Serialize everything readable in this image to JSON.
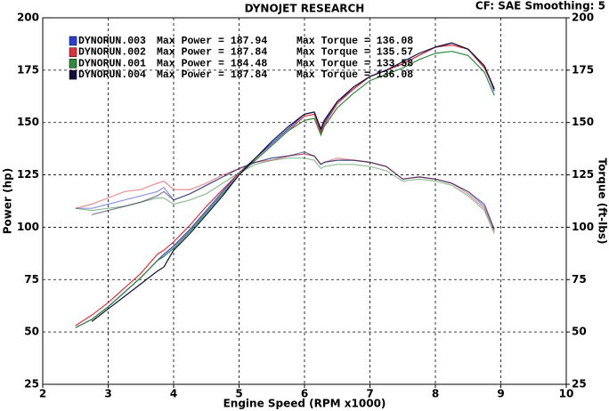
{
  "chart_data": {
    "type": "line",
    "title": "DYNOJET RESEARCH",
    "subtitle": "CF: SAE  Smoothing: 5",
    "x_label": "Engine Speed (RPM x1000)",
    "y_label": "Power (hp)",
    "y2_label": "Torque (ft-lbs)",
    "xlim": [
      2,
      10
    ],
    "xticks": [
      2,
      3,
      4,
      5,
      6,
      7,
      8,
      9,
      10
    ],
    "ylim": [
      25,
      200
    ],
    "yticks": [
      25,
      50,
      75,
      100,
      125,
      150,
      175,
      200
    ],
    "y2lim": [
      25,
      200
    ],
    "y2ticks": [
      25,
      50,
      75,
      100,
      125,
      150,
      175,
      200
    ],
    "grid": true,
    "x": [
      2.5,
      2.75,
      3,
      3.25,
      3.5,
      3.75,
      3.85,
      4,
      4.25,
      4.5,
      4.75,
      5,
      5.25,
      5.5,
      5.75,
      6,
      6.15,
      6.25,
      6.3,
      6.5,
      6.75,
      7,
      7.25,
      7.5,
      7.75,
      8,
      8.25,
      8.5,
      8.75,
      8.9
    ],
    "runs": [
      {
        "name": "DYNORUN.003",
        "max_power_label": "Max Power = 187.94",
        "max_torque_label": "Max Torque = 136.08",
        "color": "#2b3fd6",
        "power": [
          52,
          56,
          62,
          69,
          76,
          84,
          87,
          91,
          99,
          108,
          117,
          126,
          133,
          140,
          147,
          154,
          155,
          146,
          150,
          160,
          166,
          172,
          175,
          178,
          182,
          186,
          188,
          185,
          177,
          165
        ],
        "torque": [
          109,
          109,
          111,
          113,
          115,
          117,
          119,
          113,
          116,
          120,
          124,
          128,
          131,
          133,
          134,
          135,
          134,
          130,
          131,
          132,
          132,
          131,
          129,
          123,
          124,
          123,
          121,
          117,
          110,
          99
        ]
      },
      {
        "name": "DYNORUN.002",
        "max_power_label": "Max Power = 187.84",
        "max_torque_label": "Max Torque = 135.57",
        "color": "#e0303a",
        "power": [
          53,
          58,
          64,
          71,
          78,
          87,
          89,
          93,
          101,
          110,
          118,
          126,
          132,
          139,
          146,
          153,
          154,
          145,
          149,
          159,
          166,
          172,
          175,
          178,
          182,
          186,
          187,
          185,
          176,
          166
        ],
        "torque": [
          109,
          111,
          114,
          117,
          118,
          121,
          122,
          118,
          118,
          121,
          125,
          128,
          131,
          132,
          134,
          135,
          134,
          130,
          131,
          133,
          132,
          131,
          129,
          123,
          124,
          123,
          121,
          116,
          109,
          98
        ]
      },
      {
        "name": "DYNORUN.001",
        "max_power_label": "Max Power = 184.48",
        "max_torque_label": "Max Torque = 133.58",
        "color": "#2e8b3a",
        "power": [
          52,
          56,
          62,
          69,
          76,
          84,
          86,
          90,
          98,
          107,
          116,
          125,
          132,
          139,
          146,
          151,
          152,
          144,
          148,
          157,
          164,
          170,
          173,
          176,
          180,
          183,
          184,
          182,
          174,
          163
        ],
        "torque": [
          109,
          108,
          109,
          110,
          112,
          114,
          114,
          111,
          113,
          116,
          121,
          126,
          130,
          132,
          133,
          133,
          132,
          128,
          129,
          130,
          130,
          129,
          127,
          122,
          123,
          122,
          120,
          115,
          108,
          97
        ]
      },
      {
        "name": "DYNORUN.004",
        "max_power_label": "Max Power = 187.84",
        "max_torque_label": "Max Torque = 136.08",
        "color": "#10103a",
        "power": [
          null,
          55,
          61,
          67,
          73,
          79,
          81,
          89,
          97,
          106,
          115,
          125,
          133,
          141,
          148,
          154,
          155,
          147,
          151,
          160,
          167,
          172,
          175,
          179,
          183,
          186,
          188,
          185,
          177,
          166
        ],
        "torque": [
          null,
          106,
          108,
          110,
          112,
          115,
          117,
          113,
          116,
          120,
          124,
          128,
          131,
          133,
          134,
          136,
          134,
          130,
          131,
          132,
          132,
          131,
          129,
          123,
          124,
          123,
          121,
          117,
          111,
          99
        ]
      }
    ]
  }
}
